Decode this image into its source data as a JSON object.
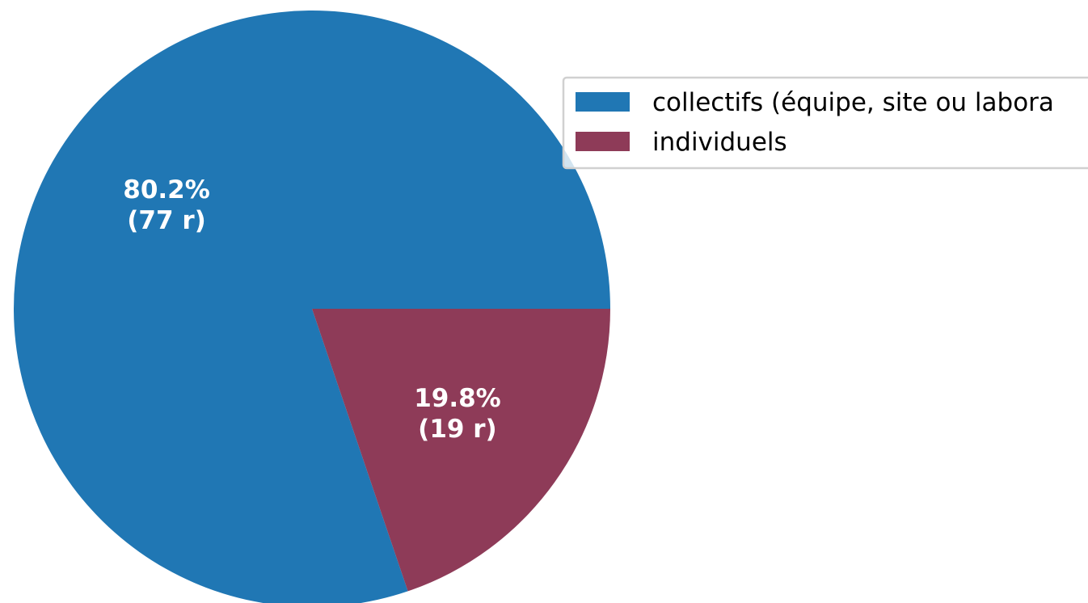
{
  "chart_data": {
    "type": "pie",
    "start_angle_deg": 0,
    "direction": "counterclockwise",
    "slices": [
      {
        "label": "collectifs (équipe, site ou laboratoire)",
        "legend_text": "collectifs (équipe, site ou labora",
        "value": 77,
        "percent_text": "80.2%",
        "count_text": "(77 r)",
        "color": "#2077b4"
      },
      {
        "label": "individuels",
        "legend_text": "individuels",
        "value": 19,
        "percent_text": "19.8%",
        "count_text": "(19 r)",
        "color": "#8e3b58"
      }
    ],
    "legend": {
      "placement": "upper-right"
    }
  }
}
